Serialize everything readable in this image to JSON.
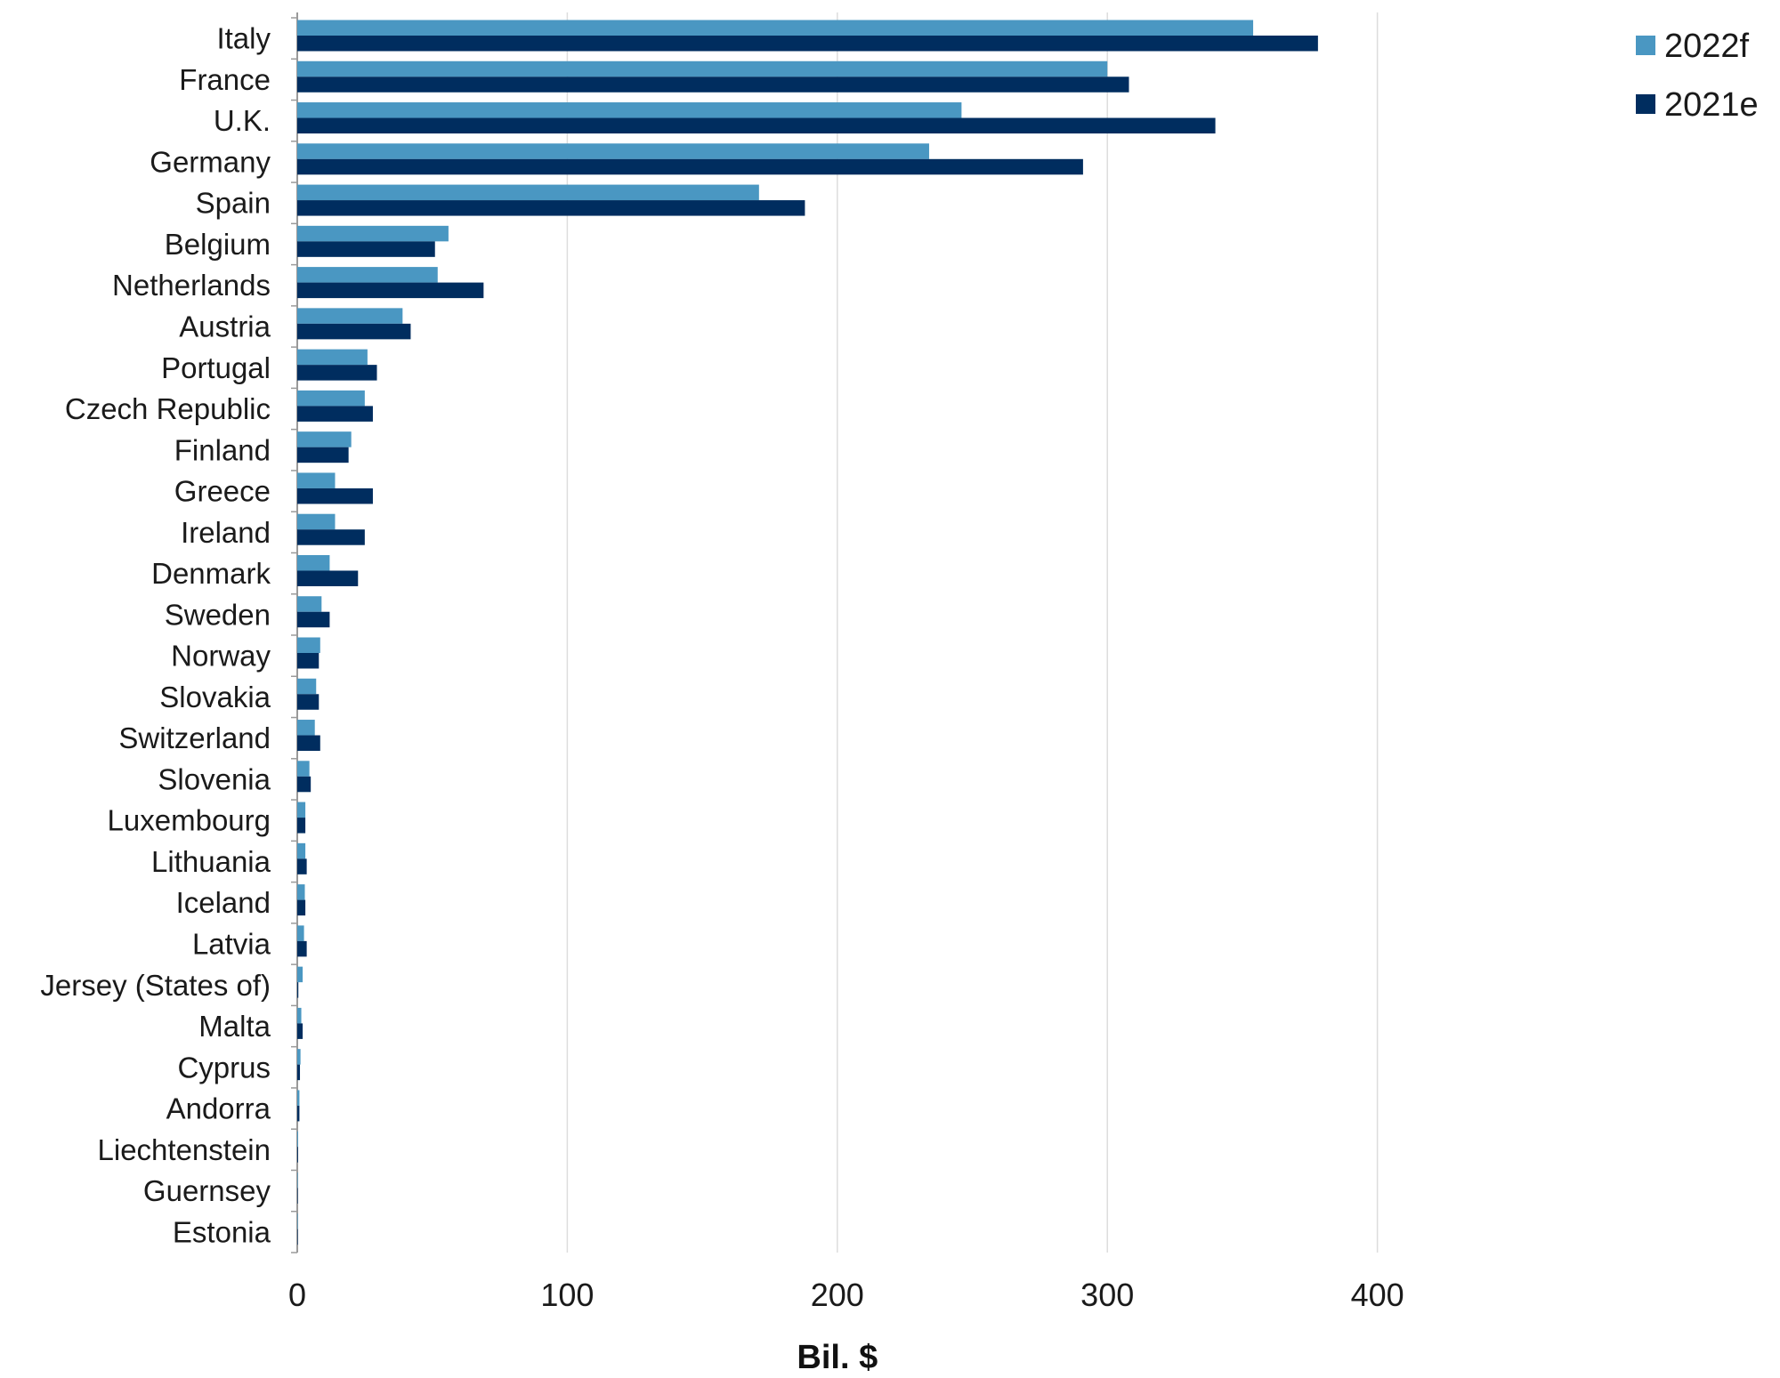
{
  "chart_data": {
    "type": "bar",
    "orientation": "horizontal",
    "categories": [
      "Italy",
      "France",
      "U.K.",
      "Germany",
      "Spain",
      "Belgium",
      "Netherlands",
      "Austria",
      "Portugal",
      "Czech Republic",
      "Finland",
      "Greece",
      "Ireland",
      "Denmark",
      "Sweden",
      "Norway",
      "Slovakia",
      "Switzerland",
      "Slovenia",
      "Luxembourg",
      "Lithuania",
      "Iceland",
      "Latvia",
      "Jersey (States of)",
      "Malta",
      "Cyprus",
      "Andorra",
      "Liechtenstein",
      "Guernsey",
      "Estonia"
    ],
    "series": [
      {
        "name": "2022f",
        "color": "#4a97c2",
        "values": [
          354,
          300,
          246,
          234,
          171,
          56,
          52,
          39,
          26,
          25,
          20,
          14,
          14,
          12,
          9,
          8.5,
          7,
          6.5,
          4.5,
          3,
          3,
          2.8,
          2.5,
          2,
          1.5,
          1.2,
          0.8,
          0.3,
          0.2,
          0.2
        ]
      },
      {
        "name": "2021e",
        "color": "#002d5f",
        "values": [
          378,
          308,
          340,
          291,
          188,
          51,
          69,
          42,
          29.5,
          28,
          19,
          28,
          25,
          22.5,
          12,
          8,
          8,
          8.5,
          5,
          3,
          3.5,
          3,
          3.5,
          0.4,
          2,
          1,
          0.8,
          0.3,
          0.2,
          0.2
        ]
      }
    ],
    "xlim": [
      0,
      470
    ],
    "xticks": [
      0,
      100,
      200,
      300,
      400
    ],
    "xtick_labels": [
      "0",
      "100",
      "200",
      "300",
      "400"
    ],
    "xlabel": "Bil. $",
    "ylabel": "",
    "title": "",
    "grid": "vertical",
    "legend_position": "top-right",
    "legend": [
      {
        "label": "2022f",
        "color": "#4a97c2"
      },
      {
        "label": "2021e",
        "color": "#002d5f"
      }
    ]
  }
}
